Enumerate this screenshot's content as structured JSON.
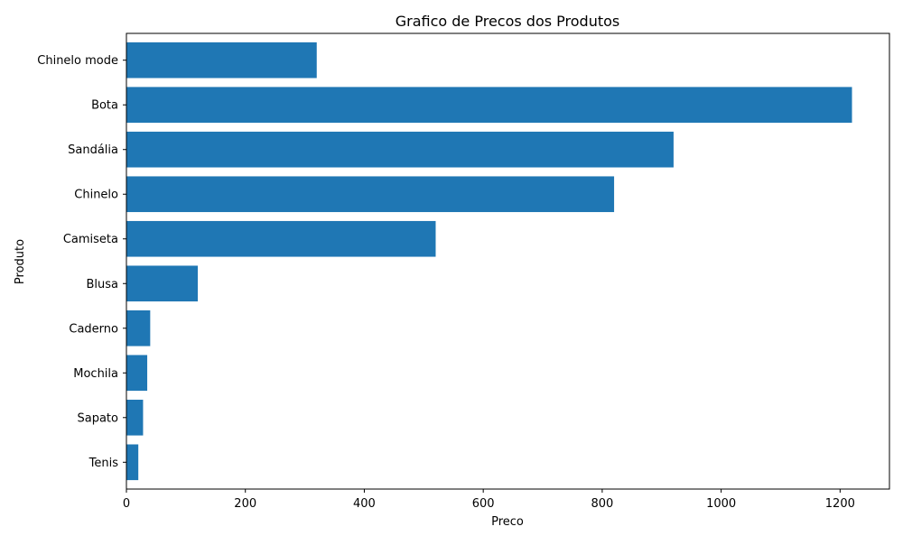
{
  "chart_data": {
    "type": "bar",
    "orientation": "horizontal",
    "title": "Grafico de Precos dos Produtos",
    "xlabel": "Preco",
    "ylabel": "Produto",
    "categories": [
      "Tenis",
      "Sapato",
      "Mochila",
      "Caderno",
      "Blusa",
      "Camiseta",
      "Chinelo",
      "Sandália",
      "Bota",
      "Chinelo mode"
    ],
    "values": [
      20,
      28,
      35,
      40,
      120,
      520,
      820,
      920,
      1220,
      320
    ],
    "xlim": [
      0,
      1283
    ],
    "xticks": [
      0,
      200,
      400,
      600,
      800,
      1000,
      1200
    ],
    "grid": false,
    "legend": "none",
    "bar_color": "#1f77b4"
  }
}
